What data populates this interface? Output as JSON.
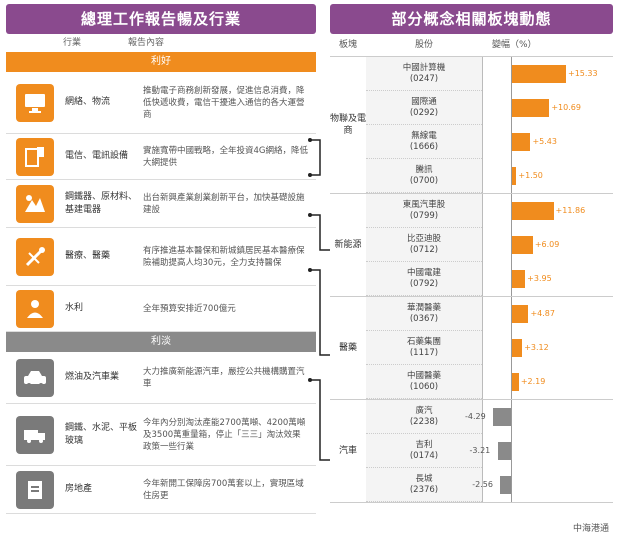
{
  "left": {
    "title": "總理工作報告暢及行業",
    "col_headers": [
      "行業",
      "報告內容"
    ],
    "section_benefit": "利好",
    "section_harm": "利淡",
    "benefit_rows": [
      {
        "icon": "monitor-icon",
        "label": "網絡、物流",
        "desc": "推動電子商務創新發展，促進信息消費，降低快遞收費，電信干擾進入通信的各大運營商"
      },
      {
        "icon": "tablet-phone-icon",
        "label": "電信、電訊設備",
        "desc": "實施寬帶中國戰略，全年投資4G網絡，降低大網提供"
      },
      {
        "icon": "construction-icon",
        "label": "鋼鐵器、原材料、基建電器",
        "desc": "出台新興產業創業創新平台，加快基礎設施建設"
      },
      {
        "icon": "tools-icon",
        "label": "醫療、醫藥",
        "desc": "有序推進基本醫保和新城鎮居民基本醫療保險補助提高人均30元，全力支持醫保"
      },
      {
        "icon": "people-icon",
        "label": "水利",
        "desc": "全年預算安排近700億元"
      }
    ],
    "harm_rows": [
      {
        "icon": "car-icon",
        "label": "燃油及汽車業",
        "desc": "大力推廣新能源汽車，嚴控公共機構購置汽車"
      },
      {
        "icon": "truck-icon",
        "label": "鋼鐵、水泥、平板玻璃",
        "desc": "今年內分別淘汰產能2700萬噸、4200萬噸及3500萬重量箱，停止「三三」淘汰效果政策一些行業"
      },
      {
        "icon": "document-icon",
        "label": "房地產",
        "desc": "今年新開工保障房700萬套以上，實現區域住房更"
      }
    ]
  },
  "right": {
    "title": "部分概念相關板塊動態",
    "col_headers": [
      "板塊",
      "股份",
      "變幅（%）"
    ],
    "groups": [
      {
        "name": "物聯及電商",
        "companies": [
          {
            "name": "中國計算機",
            "code": "0247"
          },
          {
            "name": "國際通",
            "code": "0292"
          },
          {
            "name": "無線電",
            "code": "1666"
          },
          {
            "name": "騰訊",
            "code": "0700"
          }
        ]
      },
      {
        "name": "新能源",
        "companies": [
          {
            "name": "東風汽車股",
            "code": "0799"
          },
          {
            "name": "比亞迪股",
            "code": "0712"
          },
          {
            "name": "中國電建",
            "code": "0792"
          }
        ]
      },
      {
        "name": "醫藥",
        "companies": [
          {
            "name": "華潤醫藥",
            "code": "0367"
          },
          {
            "name": "石藥集團",
            "code": "1117"
          },
          {
            "name": "中國醫藥",
            "code": "1060"
          }
        ]
      },
      {
        "name": "汽車",
        "companies": [
          {
            "name": "廣汽",
            "code": "2238"
          },
          {
            "name": "吉利",
            "code": "0174"
          },
          {
            "name": "長城",
            "code": "2376"
          }
        ]
      }
    ],
    "bars": [
      {
        "value": 15.33,
        "label": "+15.33"
      },
      {
        "value": 10.69,
        "label": "+10.69"
      },
      {
        "value": 5.43,
        "label": "+5.43"
      },
      {
        "value": 1.5,
        "label": "+1.50"
      },
      {
        "value": 11.86,
        "label": "+11.86"
      },
      {
        "value": 6.09,
        "label": "+6.09"
      },
      {
        "value": 3.95,
        "label": "+3.95"
      },
      {
        "value": 4.87,
        "label": "+4.87"
      },
      {
        "value": 3.12,
        "label": "+3.12"
      },
      {
        "value": 2.19,
        "label": "+2.19"
      },
      {
        "value": -4.29,
        "label": "-4.29"
      },
      {
        "value": -3.21,
        "label": "-3.21"
      },
      {
        "value": -2.56,
        "label": "-2.56"
      }
    ],
    "source": "中海港通"
  }
}
